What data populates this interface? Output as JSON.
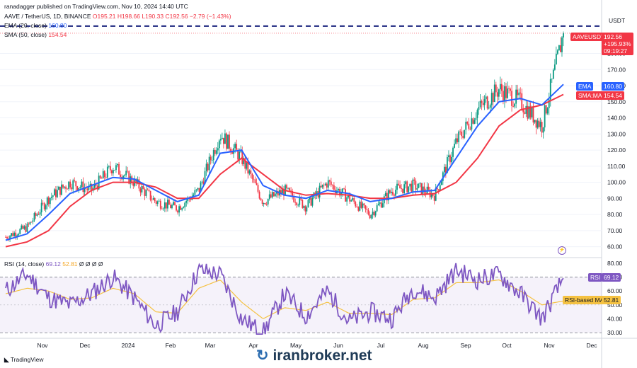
{
  "header": {
    "publisher": "ranadagger published on TradingView.com, Nov 10, 2024 14:40 UTC",
    "symbol": "AAVE / TetherUS, 1D, BINANCE",
    "ohlc": "O195.21 H198.66 L190.33 C192.56 −2.79 (−1.43%)",
    "ema_label": "EMA (20, close)",
    "ema_value": "160.80",
    "sma_label": "SMA (50, close)",
    "sma_value": "154.54",
    "rsi_label": "RSI (14, close)",
    "rsi_value": "69.12",
    "rsi_ma_value": "52.81",
    "rsi_extra": "Ø Ø Ø Ø"
  },
  "price_axis": {
    "unit": "USDT",
    "ticks": [
      "180.00",
      "170.00",
      "160.00",
      "150.00",
      "140.00",
      "130.00",
      "120.00",
      "110.00",
      "100.00",
      "90.00",
      "80.00",
      "70.00",
      "60.00"
    ]
  },
  "rsi_axis": {
    "ticks": [
      "80.00",
      "70.00",
      "60.00",
      "50.00",
      "40.00",
      "30.00"
    ]
  },
  "time_axis": {
    "ticks": [
      "Nov",
      "Dec",
      "2024",
      "Feb",
      "Mar",
      "Apr",
      "May",
      "Jun",
      "Jul",
      "Aug",
      "Sep",
      "Oct",
      "Nov",
      "Dec"
    ]
  },
  "tags": {
    "symbol": "AAVEUSDT",
    "price": "192.56",
    "change": "+195.93%",
    "timer": "09:19:27",
    "ema_tag": "EMA",
    "ema_val": "160.80",
    "sma_tag": "SMA:MA",
    "sma_val": "154.54",
    "rsi_tag": "RSI",
    "rsi_val": "69.12",
    "rsi_ma_tag": "RSI-based MA",
    "rsi_ma_val": "52.81"
  },
  "footer": {
    "tradingview": "TradingView",
    "watermark": "iranbroker.net"
  },
  "colors": {
    "up": "#089981",
    "down": "#f23645",
    "ema": "#2962ff",
    "sma": "#f23645",
    "rsi": "#7e57c2",
    "rsi_ma": "#f5c242",
    "resistance": "#1a237e"
  },
  "chart_data": {
    "type": "line",
    "title": "AAVE / TetherUS, 1D, BINANCE",
    "x": [
      "2023-10-15",
      "2023-11-01",
      "2023-11-15",
      "2023-12-01",
      "2023-12-15",
      "2024-01-01",
      "2024-01-15",
      "2024-02-01",
      "2024-02-15",
      "2024-03-01",
      "2024-03-15",
      "2024-04-01",
      "2024-04-15",
      "2024-05-01",
      "2024-05-15",
      "2024-06-01",
      "2024-06-15",
      "2024-07-01",
      "2024-07-15",
      "2024-08-01",
      "2024-08-15",
      "2024-09-01",
      "2024-09-15",
      "2024-10-01",
      "2024-10-15",
      "2024-11-01",
      "2024-11-10"
    ],
    "series": [
      {
        "name": "AAVEUSDT",
        "values": [
          66,
          72,
          90,
          100,
          95,
          110,
          100,
          88,
          84,
          95,
          130,
          115,
          88,
          95,
          85,
          100,
          90,
          80,
          95,
          98,
          92,
          125,
          145,
          158,
          150,
          135,
          192.56
        ]
      },
      {
        "name": "EMA (20, close)",
        "values": [
          64,
          68,
          80,
          93,
          98,
          103,
          102,
          95,
          88,
          92,
          118,
          120,
          98,
          92,
          90,
          95,
          93,
          88,
          90,
          94,
          95,
          115,
          135,
          150,
          152,
          148,
          160.8
        ]
      },
      {
        "name": "SMA (50, close)",
        "values": [
          60,
          63,
          70,
          85,
          95,
          100,
          100,
          97,
          90,
          90,
          105,
          115,
          105,
          95,
          92,
          93,
          92,
          90,
          90,
          92,
          93,
          100,
          115,
          135,
          145,
          148,
          154.54
        ]
      }
    ],
    "ylim": [
      55,
      200
    ],
    "resistance_level": 197,
    "rsi": {
      "values": [
        60,
        72,
        55,
        50,
        58,
        70,
        55,
        35,
        45,
        75,
        72,
        40,
        30,
        58,
        42,
        60,
        38,
        45,
        40,
        62,
        55,
        75,
        68,
        72,
        58,
        40,
        69.12
      ],
      "ma_values": [
        58,
        62,
        60,
        54,
        55,
        62,
        58,
        45,
        44,
        62,
        68,
        52,
        40,
        48,
        46,
        52,
        44,
        44,
        43,
        54,
        55,
        66,
        66,
        68,
        60,
        50,
        52.81
      ],
      "ylim": [
        27,
        82
      ],
      "levels": [
        70,
        30
      ]
    }
  }
}
